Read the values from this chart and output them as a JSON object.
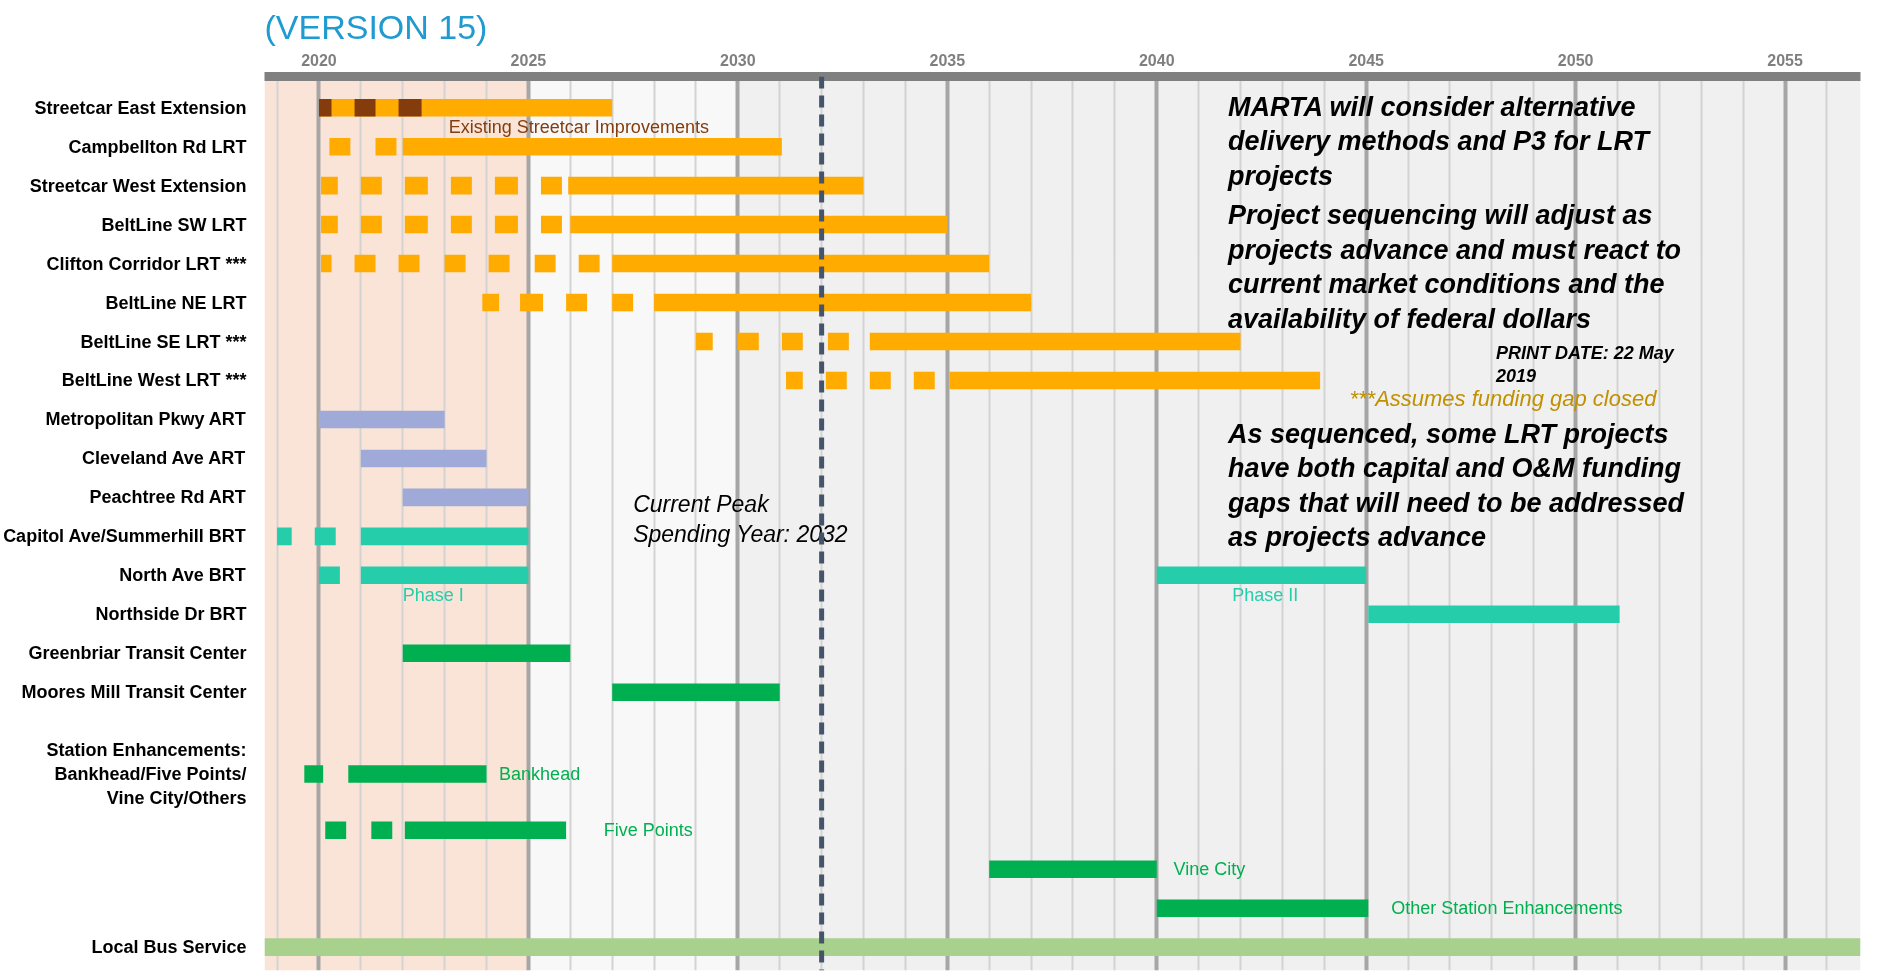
{
  "chart_data": {
    "type": "bar",
    "orientation": "horizontal",
    "title": "(VERSION 15)",
    "categories": [
      "Streetcar East Extension",
      "Campbellton Rd LRT",
      "Streetcar West Extension",
      "BeltLine SW LRT",
      "Clifton Corridor LRT ***",
      "BeltLine NE LRT",
      "BeltLine SE LRT ***",
      "BeltLine West LRT ***",
      "Metropolitan Pkwy ART",
      "Cleveland Ave ART",
      "Peachtree Rd ART",
      "Capitol Ave/Summerhill BRT",
      "North Ave BRT",
      "Northside Dr BRT",
      "Greenbriar Transit Center",
      "Moores Mill Transit Center",
      "Station Enhancements:\nBankhead/Five Points/\nVine City/Others",
      null,
      null,
      null,
      "Local Bus Service"
    ],
    "series": [
      {
        "base": [
          2020,
          2020.25,
          2020.05,
          2020.05,
          2020.05,
          2023.9,
          2029,
          2031.15,
          2020,
          2021,
          2022,
          2019,
          2020,
          2045.05,
          2022,
          2027,
          2019.65,
          2020.15,
          2036,
          2040,
          2018.7
        ],
        "values": [
          7,
          0.5,
          0.4,
          0.4,
          0.25,
          0.4,
          0.4,
          0.4,
          3,
          3,
          3,
          0.35,
          0.5,
          6,
          4,
          4,
          0.45,
          0.5,
          4,
          5.05,
          38.1
        ],
        "colors": [
          "#ffab00",
          "#ffab00",
          "#ffab00",
          "#ffab00",
          "#ffab00",
          "#ffab00",
          "#ffab00",
          "#ffab00",
          "#9faad8",
          "#9faad8",
          "#9faad8",
          "#26cdaa",
          "#26cdaa",
          "#26cdaa",
          "#00b050",
          "#00b050",
          "#00b050",
          "#00b050",
          "#00b050",
          "#00b050",
          "#a9d18e"
        ]
      },
      {
        "base": [
          2020,
          2021.35,
          2021,
          2021,
          2020.85,
          2024.8,
          2030,
          2032.1,
          null,
          null,
          null,
          2019.9,
          2021,
          null,
          null,
          null,
          2020.7,
          2021.25,
          null,
          null,
          null
        ],
        "values": [
          0.3,
          0.5,
          0.5,
          0.5,
          0.5,
          0.55,
          0.5,
          0.5,
          null,
          null,
          null,
          0.5,
          4,
          null,
          null,
          null,
          3.3,
          0.5,
          null,
          null,
          null
        ],
        "colors": [
          "#843c0c",
          "#ffab00",
          "#ffab00",
          "#ffab00",
          "#ffab00",
          "#ffab00",
          "#ffab00",
          "#ffab00",
          null,
          null,
          null,
          "#26cdaa",
          "#26cdaa",
          null,
          null,
          null,
          "#00b050",
          "#00b050",
          null,
          null,
          null
        ]
      },
      {
        "base": [
          2020.85,
          2022,
          2022.05,
          2022.05,
          2021.9,
          2025.9,
          2031.05,
          2033.15,
          null,
          null,
          null,
          2021,
          2040,
          null,
          null,
          null,
          null,
          2022.05,
          null,
          null,
          null
        ],
        "values": [
          0.5,
          9.05,
          0.55,
          0.55,
          0.5,
          0.5,
          0.5,
          0.5,
          null,
          null,
          null,
          4,
          5,
          null,
          null,
          null,
          null,
          3.85,
          null,
          null,
          null
        ],
        "colors": [
          "#843c0c",
          "#ffab00",
          "#ffab00",
          "#ffab00",
          "#ffab00",
          "#ffab00",
          "#ffab00",
          "#ffab00",
          null,
          null,
          null,
          "#26cdaa",
          "#26cdaa",
          null,
          null,
          null,
          null,
          "#00b050",
          null,
          null,
          null
        ]
      },
      {
        "base": [
          2021.9,
          null,
          2023.15,
          2023.15,
          2023,
          2027,
          2032.15,
          2034.2,
          null,
          null,
          null,
          null,
          null,
          null,
          null,
          null,
          null,
          null,
          null,
          null,
          null
        ],
        "values": [
          0.55,
          null,
          0.5,
          0.5,
          0.5,
          0.5,
          0.5,
          0.5,
          null,
          null,
          null,
          null,
          null,
          null,
          null,
          null,
          null,
          null,
          null,
          null,
          null
        ],
        "colors": [
          "#843c0c",
          null,
          "#ffab00",
          "#ffab00",
          "#ffab00",
          "#ffab00",
          "#ffab00",
          "#ffab00",
          null,
          null,
          null,
          null,
          null,
          null,
          null,
          null,
          null,
          null,
          null,
          null,
          null
        ]
      },
      {
        "base": [
          null,
          null,
          2024.2,
          2024.2,
          2024.05,
          2028,
          2033.15,
          2035.05,
          null,
          null,
          null,
          null,
          null,
          null,
          null,
          null,
          null,
          null,
          null,
          null,
          null
        ],
        "values": [
          null,
          null,
          0.55,
          0.55,
          0.5,
          9,
          8.85,
          8.85,
          null,
          null,
          null,
          null,
          null,
          null,
          null,
          null,
          null,
          null,
          null,
          null,
          null
        ],
        "color": "#ffab00"
      },
      {
        "base": [
          null,
          null,
          2025.3,
          2025.3,
          2025.15,
          null,
          null,
          null,
          null,
          null,
          null,
          null,
          null,
          null,
          null,
          null,
          null,
          null,
          null,
          null,
          null
        ],
        "values": [
          null,
          null,
          0.5,
          0.5,
          0.5,
          null,
          null,
          null,
          null,
          null,
          null,
          null,
          null,
          null,
          null,
          null,
          null,
          null,
          null,
          null,
          null
        ],
        "color": "#ffab00"
      },
      {
        "base": [
          null,
          null,
          2025.95,
          2026,
          2026.2,
          null,
          null,
          null,
          null,
          null,
          null,
          null,
          null,
          null,
          null,
          null,
          null,
          null,
          null,
          null,
          null
        ],
        "values": [
          null,
          null,
          7.05,
          9,
          0.5,
          null,
          null,
          null,
          null,
          null,
          null,
          null,
          null,
          null,
          null,
          null,
          null,
          null,
          null,
          null,
          null
        ],
        "color": "#ffab00"
      },
      {
        "base": [
          null,
          null,
          null,
          null,
          2027,
          null,
          null,
          null,
          null,
          null,
          null,
          null,
          null,
          null,
          null,
          null,
          null,
          null,
          null,
          null,
          null
        ],
        "values": [
          null,
          null,
          null,
          null,
          9,
          null,
          null,
          null,
          null,
          null,
          null,
          null,
          null,
          null,
          null,
          null,
          null,
          null,
          null,
          null,
          null
        ],
        "color": "#ffab00"
      }
    ],
    "xlim": [
      2018.7,
      2056.8
    ],
    "xticks": [
      {
        "value": 2019,
        "label": null
      },
      2020,
      {
        "value": 2021,
        "label": null
      },
      {
        "value": 2022,
        "label": null
      },
      {
        "value": 2023,
        "label": null
      },
      {
        "value": 2024,
        "label": null
      },
      2025,
      {
        "value": 2026,
        "label": null
      },
      {
        "value": 2027,
        "label": null
      },
      {
        "value": 2028,
        "label": null
      },
      {
        "value": 2029,
        "label": null
      },
      2030,
      {
        "value": 2031,
        "label": null
      },
      {
        "value": 2032,
        "label": null
      },
      {
        "value": 2033,
        "label": null
      },
      {
        "value": 2034,
        "label": null
      },
      2035,
      {
        "value": 2036,
        "label": null
      },
      {
        "value": 2037,
        "label": null
      },
      {
        "value": 2038,
        "label": null
      },
      {
        "value": 2039,
        "label": null
      },
      2040,
      {
        "value": 2041,
        "label": null
      },
      {
        "value": 2042,
        "label": null
      },
      {
        "value": 2043,
        "label": null
      },
      {
        "value": 2044,
        "label": null
      },
      2045,
      {
        "value": 2046,
        "label": null
      },
      {
        "value": 2047,
        "label": null
      },
      {
        "value": 2048,
        "label": null
      },
      {
        "value": 2049,
        "label": null
      },
      2050,
      {
        "value": 2051,
        "label": null
      },
      {
        "value": 2052,
        "label": null
      },
      {
        "value": 2053,
        "label": null
      },
      {
        "value": 2054,
        "label": null
      },
      2055,
      {
        "value": 2056,
        "label": null
      }
    ],
    "grid": "x",
    "bands": [
      {
        "axis": "x",
        "from": 2018.7,
        "to": 2025,
        "color": "#f9e4d7"
      },
      {
        "axis": "x",
        "from": 2025,
        "to": 2030,
        "color": "#f8f8f8"
      },
      {
        "axis": "x",
        "from": 2030,
        "to": 2056.8,
        "color": "#f0f0f0"
      }
    ],
    "ref_lines": [
      {
        "axis": "x",
        "value": 2032,
        "label": "Current Peak\nSpending Year: 2032",
        "color": "#44546a",
        "line_style": "dashed"
      }
    ],
    "annotations": [
      "Existing Streetcar Improvements",
      "Phase I",
      "Phase II",
      "Bankhead",
      "Five Points",
      "Vine City",
      "Other Station Enhancements",
      "MARTA will consider alternative\ndelivery methods and P3 for LRT\nprojects",
      "Project sequencing will adjust as\nprojects advance and must react to\ncurrent market conditions and the\navailability of federal dollars",
      "PRINT DATE: 22 May\n2019",
      "***Assumes funding gap closed",
      "As sequenced, some LRT projects\nhave both capital and O&M funding\ngaps that will need to be addressed\nas projects advance"
    ]
  }
}
